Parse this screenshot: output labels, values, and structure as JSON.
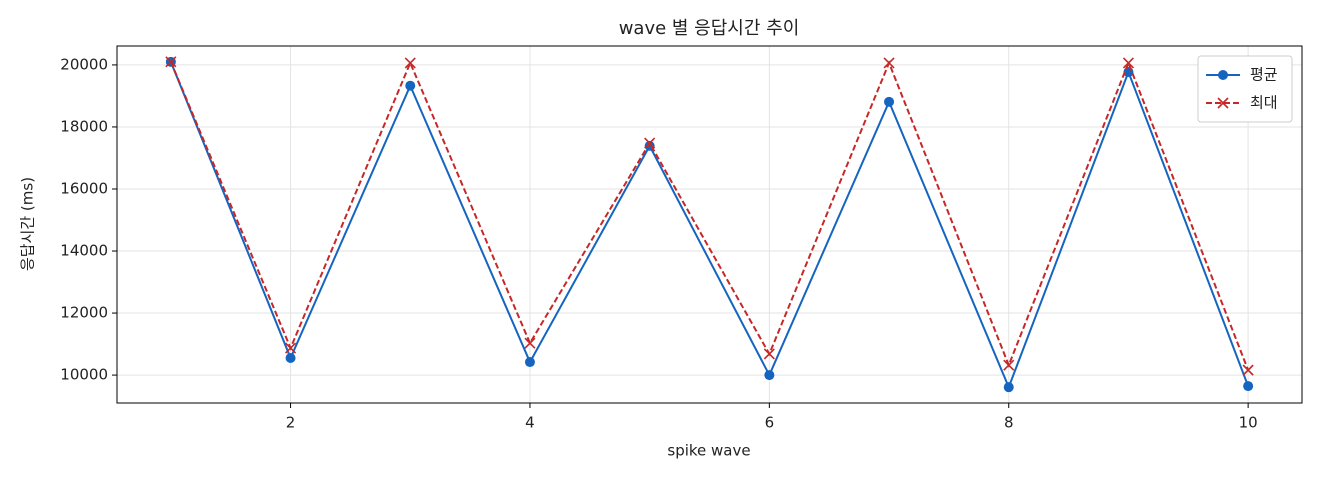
{
  "chart_data": {
    "type": "line",
    "title": "wave 별 응답시간 추이",
    "xlabel": "spike wave",
    "ylabel": "응답시간 (ms)",
    "x": [
      1,
      2,
      3,
      4,
      5,
      6,
      7,
      8,
      9,
      10
    ],
    "series": [
      {
        "name": "평균",
        "color": "#1565c0",
        "marker": "circle",
        "dash": false,
        "values": [
          20100,
          10550,
          19330,
          10420,
          17390,
          10000,
          18810,
          9610,
          19770,
          9645
        ]
      },
      {
        "name": "최대",
        "color": "#c62828",
        "marker": "x",
        "dash": true,
        "values": [
          20100,
          10870,
          20065,
          11030,
          17480,
          10680,
          20065,
          10320,
          20065,
          10160
        ]
      }
    ],
    "xlim": [
      0.55,
      10.45
    ],
    "ylim": [
      9100,
      20610
    ],
    "xticks": [
      2,
      4,
      6,
      8,
      10
    ],
    "yticks": [
      10000,
      12000,
      14000,
      16000,
      18000,
      20000
    ],
    "grid": true,
    "legend": "upper right"
  }
}
